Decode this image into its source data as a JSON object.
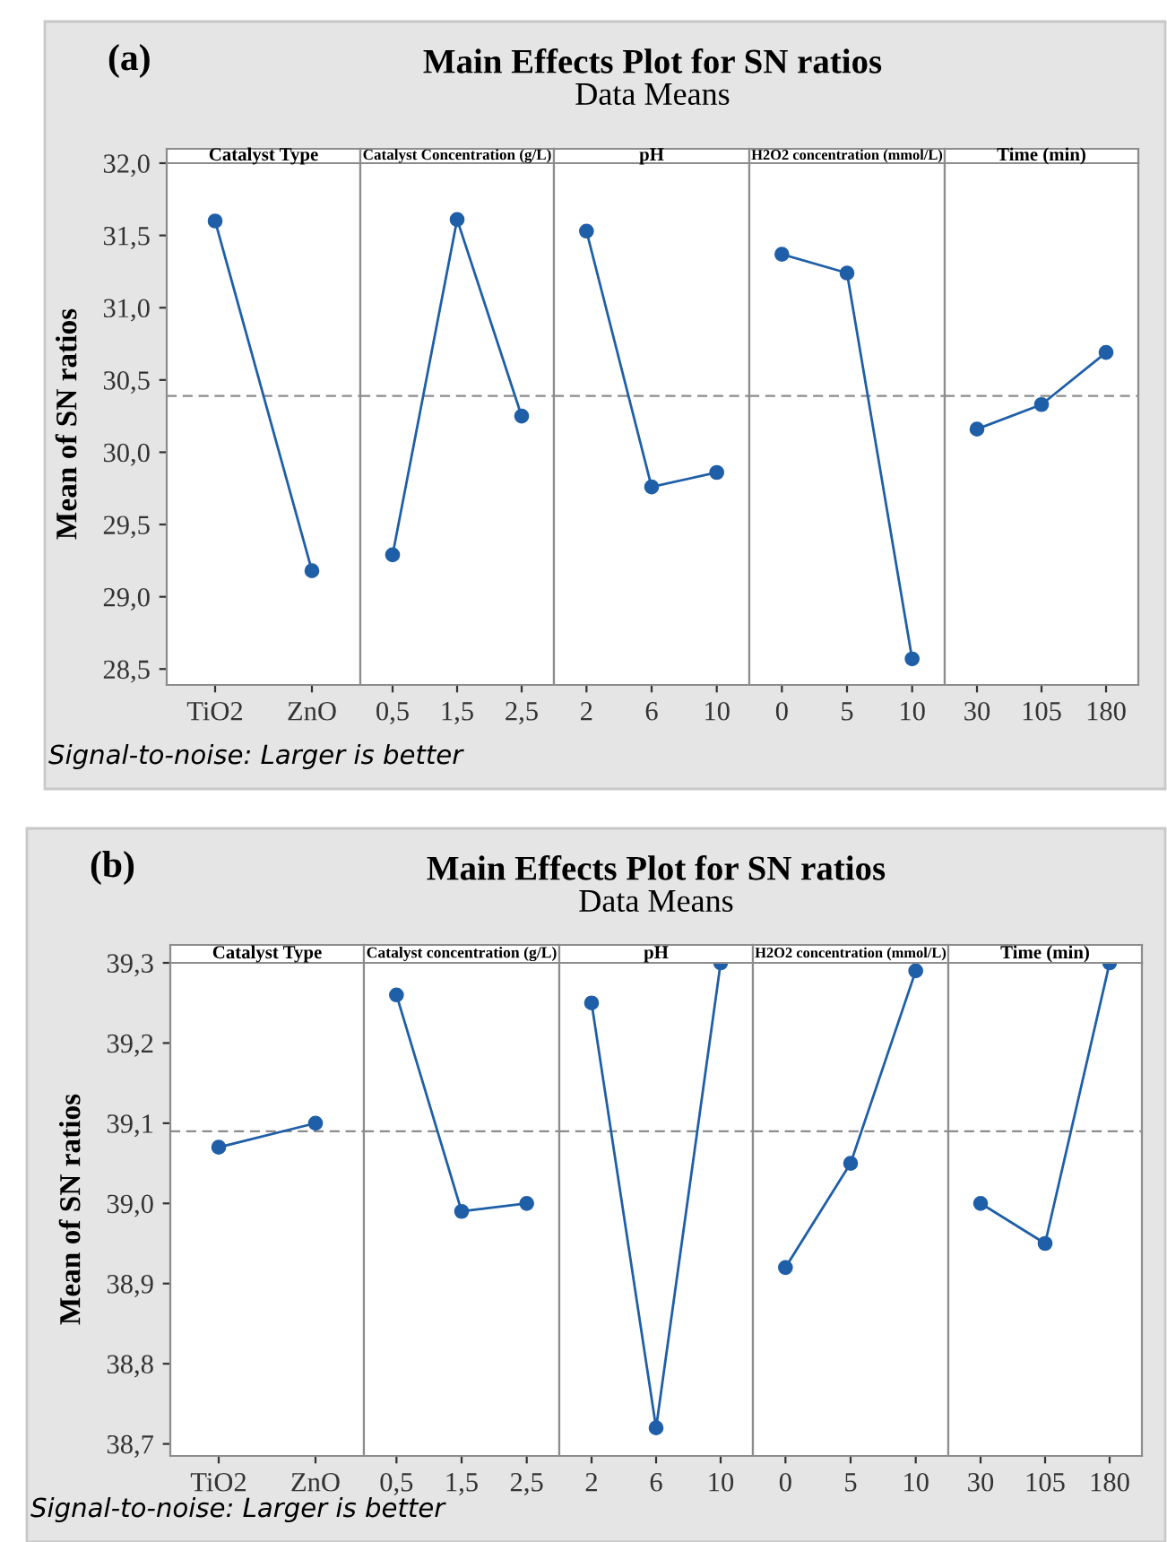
{
  "chart_data": [
    {
      "type": "line",
      "title": "Catalyst Type",
      "ylabel": "Mean of SN ratios",
      "annotations": [
        "(a)",
        "Main Effects Plot for SN ratios",
        "Data Means",
        "Signal-to-noise: Larger is better"
      ],
      "categories": [
        "TiO2",
        "ZnO"
      ],
      "series": [
        {
          "color": "#1f5fa8",
          "values": [
            31.6,
            29.18
          ]
        }
      ],
      "ylim": [
        28.39,
        32.0
      ],
      "yticks": [
        {
          "value": 28.5,
          "label": "28,5"
        },
        {
          "value": 29.0,
          "label": "29,0"
        },
        {
          "value": 29.5,
          "label": "29,5"
        },
        {
          "value": 30.0,
          "label": "30,0"
        },
        {
          "value": 30.5,
          "label": "30,5"
        },
        {
          "value": 31.0,
          "label": "31,0"
        },
        {
          "value": 31.5,
          "label": "31,5"
        },
        {
          "value": 32.0,
          "label": "32,0"
        }
      ],
      "ref_lines": [
        {
          "axis": "y",
          "value": 30.39,
          "color": "#8c8c8c",
          "line_style": "dashed"
        }
      ],
      "marker": "circle",
      "grid": false
    },
    {
      "type": "line",
      "title": "Catalyst Concentration (g/L)",
      "categories": [
        "0,5",
        "1,5",
        "2,5"
      ],
      "series": [
        {
          "color": "#1f5fa8",
          "values": [
            29.29,
            31.61,
            30.25
          ]
        }
      ],
      "ylim": [
        28.39,
        32.0
      ],
      "ref_lines": [
        {
          "axis": "y",
          "value": 30.39,
          "color": "#8c8c8c",
          "line_style": "dashed"
        }
      ],
      "marker": "circle",
      "grid": false,
      "tick_labels": "x"
    },
    {
      "type": "line",
      "title": "pH",
      "categories": [
        "2",
        "6",
        "10"
      ],
      "series": [
        {
          "color": "#1f5fa8",
          "values": [
            31.53,
            29.76,
            29.86
          ]
        }
      ],
      "ylim": [
        28.39,
        32.0
      ],
      "ref_lines": [
        {
          "axis": "y",
          "value": 30.39,
          "color": "#8c8c8c",
          "line_style": "dashed"
        }
      ],
      "marker": "circle",
      "grid": false,
      "tick_labels": "x"
    },
    {
      "type": "line",
      "title": "H2O2 concentration (mmol/L)",
      "categories": [
        "0",
        "5",
        "10"
      ],
      "series": [
        {
          "color": "#1f5fa8",
          "values": [
            31.37,
            31.24,
            28.57
          ]
        }
      ],
      "ylim": [
        28.39,
        32.0
      ],
      "ref_lines": [
        {
          "axis": "y",
          "value": 30.39,
          "color": "#8c8c8c",
          "line_style": "dashed"
        }
      ],
      "marker": "circle",
      "grid": false,
      "tick_labels": "x"
    },
    {
      "type": "line",
      "title": "Time (min)",
      "categories": [
        "30",
        "105",
        "180"
      ],
      "series": [
        {
          "color": "#1f5fa8",
          "values": [
            30.16,
            30.33,
            30.69
          ]
        }
      ],
      "ylim": [
        28.39,
        32.0
      ],
      "ref_lines": [
        {
          "axis": "y",
          "value": 30.39,
          "color": "#8c8c8c",
          "line_style": "dashed"
        }
      ],
      "marker": "circle",
      "grid": false,
      "tick_labels": "x"
    },
    {
      "type": "line",
      "title": "Catalyst Type",
      "ylabel": "Mean of SN ratios",
      "annotations": [
        "(b)",
        "Main Effects Plot for SN ratios",
        "Data Means",
        "Signal-to-noise: Larger is better"
      ],
      "categories": [
        "TiO2",
        "ZnO"
      ],
      "series": [
        {
          "color": "#1f5fa8",
          "values": [
            39.07,
            39.1
          ]
        }
      ],
      "ylim": [
        38.685,
        39.3
      ],
      "yticks": [
        {
          "value": 38.7,
          "label": "38,7"
        },
        {
          "value": 38.8,
          "label": "38,8"
        },
        {
          "value": 38.9,
          "label": "38,9"
        },
        {
          "value": 39.0,
          "label": "39,0"
        },
        {
          "value": 39.1,
          "label": "39,1"
        },
        {
          "value": 39.2,
          "label": "39,2"
        },
        {
          "value": 39.3,
          "label": "39,3"
        }
      ],
      "ref_lines": [
        {
          "axis": "y",
          "value": 39.09,
          "color": "#8c8c8c",
          "line_style": "dashed"
        }
      ],
      "marker": "circle",
      "grid": false
    },
    {
      "type": "line",
      "title": "Catalyst concentration (g/L)",
      "categories": [
        "0,5",
        "1,5",
        "2,5"
      ],
      "series": [
        {
          "color": "#1f5fa8",
          "values": [
            39.26,
            38.99,
            39.0
          ]
        }
      ],
      "ylim": [
        38.685,
        39.3
      ],
      "ref_lines": [
        {
          "axis": "y",
          "value": 39.09,
          "color": "#8c8c8c",
          "line_style": "dashed"
        }
      ],
      "marker": "circle",
      "grid": false,
      "tick_labels": "x"
    },
    {
      "type": "line",
      "title": "pH",
      "categories": [
        "2",
        "6",
        "10"
      ],
      "series": [
        {
          "color": "#1f5fa8",
          "values": [
            39.25,
            38.72,
            39.3
          ]
        }
      ],
      "ylim": [
        38.685,
        39.3
      ],
      "ref_lines": [
        {
          "axis": "y",
          "value": 39.09,
          "color": "#8c8c8c",
          "line_style": "dashed"
        }
      ],
      "marker": "circle",
      "grid": false,
      "tick_labels": "x"
    },
    {
      "type": "line",
      "title": "H2O2 concentration (mmol/L)",
      "categories": [
        "0",
        "5",
        "10"
      ],
      "series": [
        {
          "color": "#1f5fa8",
          "values": [
            38.92,
            39.05,
            39.29
          ]
        }
      ],
      "ylim": [
        38.685,
        39.3
      ],
      "ref_lines": [
        {
          "axis": "y",
          "value": 39.09,
          "color": "#8c8c8c",
          "line_style": "dashed"
        }
      ],
      "marker": "circle",
      "grid": false,
      "tick_labels": "x"
    },
    {
      "type": "line",
      "title": "Time (min)",
      "categories": [
        "30",
        "105",
        "180"
      ],
      "series": [
        {
          "color": "#1f5fa8",
          "values": [
            39.0,
            38.95,
            39.3
          ]
        }
      ],
      "ylim": [
        38.685,
        39.3
      ],
      "ref_lines": [
        {
          "axis": "y",
          "value": 39.09,
          "color": "#8c8c8c",
          "line_style": "dashed"
        }
      ],
      "marker": "circle",
      "grid": false,
      "tick_labels": "x"
    }
  ]
}
